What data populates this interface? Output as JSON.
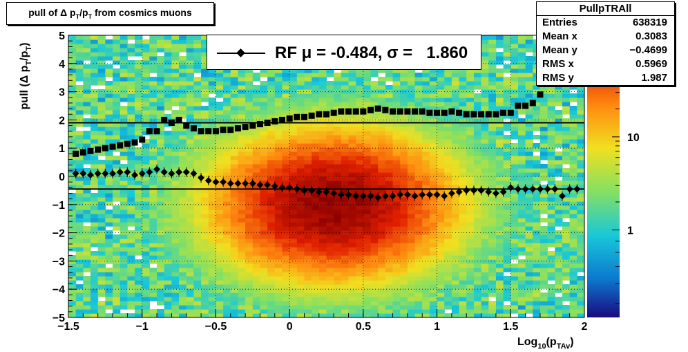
{
  "title": "pull of Δ p_T/p_T from cosmics muons",
  "legend": {
    "label": "RF μ = -0.484, σ =   1.860"
  },
  "stats": {
    "name": "PullpTRAll",
    "rows": [
      {
        "label": "Entries",
        "value": "638319"
      },
      {
        "label": "Mean x",
        "value": "0.3083"
      },
      {
        "label": "Mean y",
        "value": "−0.4699"
      },
      {
        "label": "RMS x",
        "value": "0.5969"
      },
      {
        "label": "RMS y",
        "value": "1.987"
      }
    ]
  },
  "chart_data": {
    "type": "heatmap",
    "xlabel": "Log10(pTAv)",
    "ylabel": "pull (Δ pT/pT)",
    "xlim": [
      -1.5,
      2
    ],
    "ylim": [
      -5,
      5
    ],
    "x_ticks": [
      "−1.5",
      "−1",
      "−0.5",
      "0",
      "0.5",
      "1",
      "1.5",
      "2"
    ],
    "y_ticks": [
      "−5",
      "−4",
      "−3",
      "−2",
      "−1",
      "0",
      "1",
      "2",
      "3",
      "4",
      "5"
    ],
    "z_scale": "log",
    "z_ticks": [
      "1",
      "10"
    ],
    "colormap": [
      "#1a0a80",
      "#0c7ad0",
      "#18c8d8",
      "#88e060",
      "#f0e020",
      "#ff8a10",
      "#e02000",
      "#8a0000"
    ],
    "density_peak": {
      "x": 0.3,
      "y": -1.0
    },
    "grid": true,
    "reference_lines": [
      {
        "y": 1.9
      },
      {
        "y": -0.45
      }
    ],
    "series": [
      {
        "name": "RMS",
        "marker": "square",
        "x": [
          -1.45,
          -1.4,
          -1.35,
          -1.3,
          -1.25,
          -1.2,
          -1.15,
          -1.1,
          -1.05,
          -1.0,
          -0.95,
          -0.9,
          -0.85,
          -0.8,
          -0.75,
          -0.7,
          -0.65,
          -0.6,
          -0.55,
          -0.5,
          -0.45,
          -0.4,
          -0.35,
          -0.3,
          -0.25,
          -0.2,
          -0.15,
          -0.1,
          -0.05,
          0.0,
          0.05,
          0.1,
          0.15,
          0.2,
          0.25,
          0.3,
          0.35,
          0.4,
          0.45,
          0.5,
          0.55,
          0.6,
          0.65,
          0.7,
          0.75,
          0.8,
          0.85,
          0.9,
          0.95,
          1.0,
          1.05,
          1.1,
          1.15,
          1.2,
          1.25,
          1.3,
          1.35,
          1.4,
          1.45,
          1.5,
          1.55,
          1.6,
          1.65,
          1.7,
          1.75,
          1.8,
          1.85,
          1.9,
          1.95
        ],
        "values": [
          0.8,
          0.85,
          0.9,
          0.95,
          1.0,
          1.05,
          1.1,
          1.15,
          1.2,
          1.3,
          1.6,
          1.6,
          2.0,
          1.9,
          2.0,
          1.8,
          1.7,
          1.6,
          1.6,
          1.6,
          1.65,
          1.65,
          1.7,
          1.75,
          1.8,
          1.85,
          1.9,
          1.95,
          2.0,
          2.05,
          2.1,
          2.1,
          2.15,
          2.2,
          2.2,
          2.25,
          2.3,
          2.3,
          2.3,
          2.3,
          2.35,
          2.4,
          2.35,
          2.3,
          2.3,
          2.3,
          2.3,
          2.3,
          2.25,
          2.25,
          2.25,
          2.3,
          2.25,
          2.2,
          2.2,
          2.2,
          2.2,
          2.2,
          2.25,
          2.25,
          2.5,
          2.5,
          2.6,
          2.9,
          3.3,
          3.7,
          3.8,
          3.9,
          4.2
        ]
      },
      {
        "name": "mean",
        "marker": "diamond",
        "x": [
          -1.45,
          -1.4,
          -1.35,
          -1.3,
          -1.25,
          -1.2,
          -1.15,
          -1.1,
          -1.05,
          -1.0,
          -0.95,
          -0.9,
          -0.85,
          -0.8,
          -0.75,
          -0.7,
          -0.65,
          -0.6,
          -0.55,
          -0.5,
          -0.45,
          -0.4,
          -0.35,
          -0.3,
          -0.25,
          -0.2,
          -0.15,
          -0.1,
          -0.05,
          0.0,
          0.05,
          0.1,
          0.15,
          0.2,
          0.25,
          0.3,
          0.35,
          0.4,
          0.45,
          0.5,
          0.55,
          0.6,
          0.65,
          0.7,
          0.75,
          0.8,
          0.85,
          0.9,
          0.95,
          1.0,
          1.05,
          1.1,
          1.15,
          1.2,
          1.25,
          1.3,
          1.35,
          1.4,
          1.45,
          1.5,
          1.55,
          1.6,
          1.65,
          1.7,
          1.75,
          1.8,
          1.85,
          1.9,
          1.95
        ],
        "values": [
          0.1,
          0.1,
          0.05,
          0.1,
          0.1,
          0.1,
          0.15,
          0.15,
          0.05,
          0.1,
          0.15,
          0.25,
          0.15,
          0.1,
          0.15,
          0.15,
          0.1,
          -0.05,
          -0.15,
          -0.2,
          -0.2,
          -0.25,
          -0.25,
          -0.25,
          -0.25,
          -0.3,
          -0.3,
          -0.35,
          -0.4,
          -0.4,
          -0.45,
          -0.5,
          -0.5,
          -0.55,
          -0.55,
          -0.6,
          -0.65,
          -0.65,
          -0.7,
          -0.7,
          -0.7,
          -0.75,
          -0.7,
          -0.7,
          -0.65,
          -0.65,
          -0.7,
          -0.65,
          -0.65,
          -0.65,
          -0.7,
          -0.6,
          -0.55,
          -0.5,
          -0.5,
          -0.5,
          -0.55,
          -0.6,
          -0.55,
          -0.4,
          -0.45,
          -0.45,
          -0.45,
          -0.45,
          -0.45,
          -0.45,
          -0.7,
          -0.45,
          -0.45
        ]
      }
    ]
  }
}
